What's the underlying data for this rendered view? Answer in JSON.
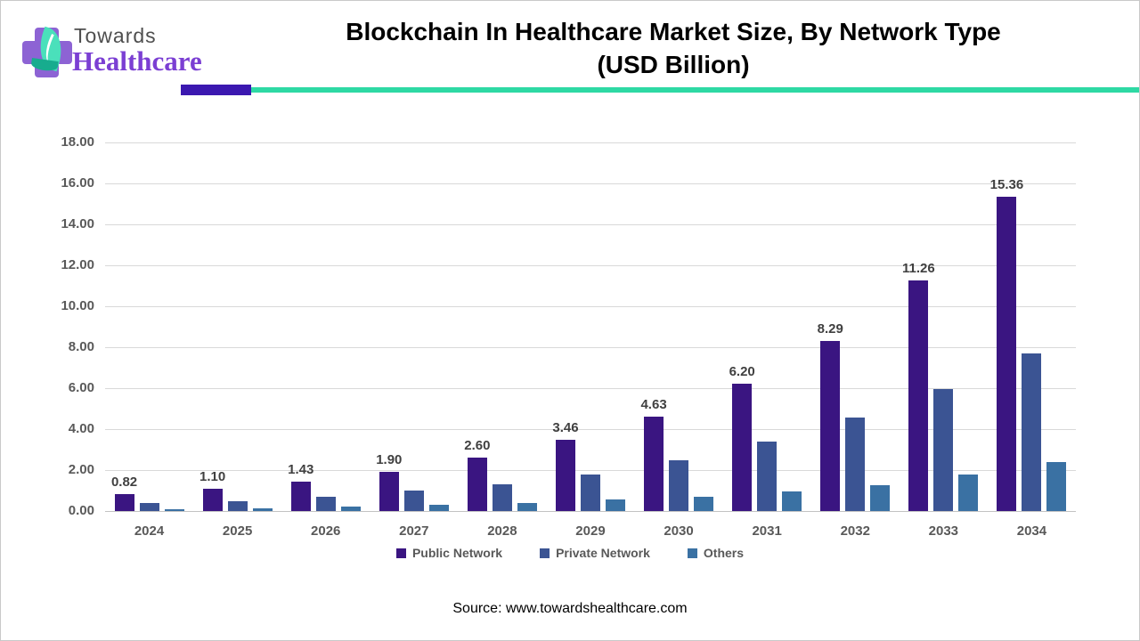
{
  "logo": {
    "line1": "Towards",
    "line2": "Healthcare"
  },
  "header": {
    "title_line1": "Blockchain In Healthcare Market Size, By Network Type",
    "title_line2": "(USD Billion)",
    "accent_purple": "#3b18b0",
    "accent_teal": "#2ed9a4"
  },
  "chart_data": {
    "type": "bar",
    "title": "Blockchain In Healthcare Market Size, By Network Type (USD Billion)",
    "categories": [
      "2024",
      "2025",
      "2026",
      "2027",
      "2028",
      "2029",
      "2030",
      "2031",
      "2032",
      "2033",
      "2034"
    ],
    "series": [
      {
        "name": "Public Network",
        "color": "#3a1581",
        "values": [
          0.82,
          1.1,
          1.43,
          1.9,
          2.6,
          3.46,
          4.63,
          6.2,
          8.29,
          11.26,
          15.36
        ],
        "labels": [
          "0.82",
          "1.10",
          "1.43",
          "1.90",
          "2.60",
          "3.46",
          "4.63",
          "6.20",
          "8.29",
          "11.26",
          "15.36"
        ]
      },
      {
        "name": "Private Network",
        "color": "#3b5493",
        "values": [
          0.4,
          0.5,
          0.7,
          1.0,
          1.3,
          1.8,
          2.5,
          3.4,
          4.55,
          5.95,
          7.7
        ]
      },
      {
        "name": "Others",
        "color": "#3a71a3",
        "values": [
          0.1,
          0.15,
          0.2,
          0.3,
          0.4,
          0.55,
          0.7,
          0.95,
          1.25,
          1.8,
          2.4
        ]
      }
    ],
    "ylim": [
      0,
      18
    ],
    "yticks": [
      "18.00",
      "16.00",
      "14.00",
      "12.00",
      "10.00",
      "8.00",
      "6.00",
      "4.00",
      "2.00",
      "0.00"
    ],
    "grid": true,
    "legend_position": "bottom",
    "gridline_color": "#d9d9d9",
    "axis_text_color": "#595959",
    "value_label_color": "#404040"
  },
  "footer": {
    "source": "Source: www.towardshealthcare.com"
  }
}
